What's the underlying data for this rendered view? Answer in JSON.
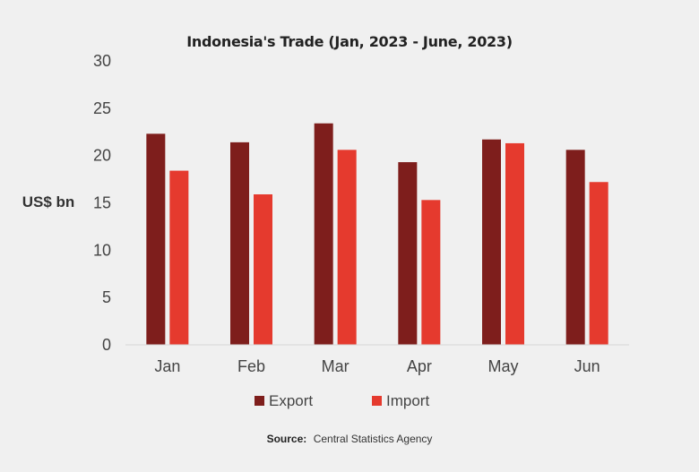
{
  "chart_data": {
    "type": "bar",
    "title": "Indonesia's Trade (Jan, 2023 - June, 2023)",
    "ylabel": "US$ bn",
    "xlabel": "",
    "categories": [
      "Jan",
      "Feb",
      "Mar",
      "Apr",
      "May",
      "Jun"
    ],
    "series": [
      {
        "name": "Export",
        "values": [
          22.3,
          21.4,
          23.4,
          19.3,
          21.7,
          20.6
        ],
        "color": "#7e1e1c"
      },
      {
        "name": "Import",
        "values": [
          18.4,
          15.9,
          20.6,
          15.3,
          21.3,
          17.2
        ],
        "color": "#e53a2e"
      }
    ],
    "ylim": [
      0,
      30
    ],
    "yticks": [
      0,
      5,
      10,
      15,
      20,
      25,
      30
    ],
    "grid": false,
    "legend": "bottom"
  },
  "source": {
    "label": "Source:",
    "text": "Central Statistics Agency"
  }
}
